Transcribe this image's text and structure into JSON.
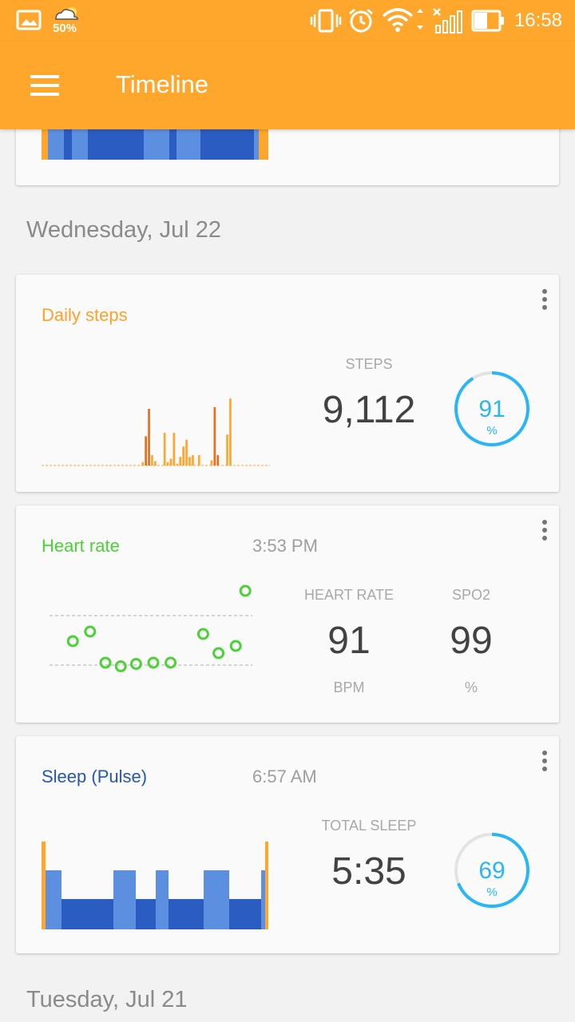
{
  "statusbar": {
    "battery_percent": "50%",
    "time": "16:58"
  },
  "appbar": {
    "title": "Timeline"
  },
  "date_headers": [
    "Wednesday, Jul 22",
    "Tuesday, Jul 21"
  ],
  "steps_card": {
    "title": "Daily steps",
    "title_color": "#ff9f2c",
    "metric_label": "STEPS",
    "metric_value": "9,112",
    "goal_percent": "91",
    "goal_unit": "%",
    "goal_fraction": 0.91
  },
  "heart_card": {
    "title": "Heart rate",
    "title_color": "#4cd137",
    "time": "3:53 PM",
    "hr_label": "HEART RATE",
    "hr_value": "91",
    "hr_unit": "BPM",
    "spo2_label": "SPO2",
    "spo2_value": "99",
    "spo2_unit": "%"
  },
  "sleep_card": {
    "title": "Sleep (Pulse)",
    "title_color": "#2456b8",
    "time": "6:57 AM",
    "metric_label": "TOTAL SLEEP",
    "metric_value": "5:35",
    "goal_percent": "69",
    "goal_unit": "%",
    "goal_fraction": 0.69
  },
  "chart_data": [
    {
      "type": "bar",
      "name_hint": "daily-steps",
      "values": [
        0,
        0,
        0,
        0,
        0,
        0,
        0,
        0,
        0,
        0,
        0,
        0,
        0,
        0,
        0,
        0,
        0,
        0,
        0,
        0,
        0,
        0,
        0,
        0,
        0,
        0,
        0,
        0,
        0,
        0,
        0,
        0,
        4,
        34,
        66,
        12,
        5,
        0,
        0,
        38,
        4,
        8,
        38,
        2,
        10,
        22,
        30,
        10,
        12,
        0,
        12,
        0,
        0,
        0,
        6,
        68,
        12,
        0,
        0,
        36,
        78,
        0,
        0,
        0,
        0,
        0,
        0,
        0,
        0,
        0,
        0,
        0,
        0
      ],
      "highlight": [
        33,
        34,
        55,
        56
      ]
    },
    {
      "type": "scatter",
      "name_hint": "heart-rate",
      "points": [
        [
          0.08,
          0.52
        ],
        [
          0.17,
          0.44
        ],
        [
          0.25,
          0.7
        ],
        [
          0.33,
          0.73
        ],
        [
          0.41,
          0.71
        ],
        [
          0.5,
          0.7
        ],
        [
          0.59,
          0.7
        ],
        [
          0.76,
          0.46
        ],
        [
          0.84,
          0.62
        ],
        [
          0.93,
          0.56
        ],
        [
          0.98,
          0.1
        ]
      ]
    },
    {
      "type": "bar",
      "name_hint": "sleep",
      "segments": [
        {
          "w": 5,
          "level": "awake"
        },
        {
          "w": 20,
          "level": "light"
        },
        {
          "w": 65,
          "level": "deep"
        },
        {
          "w": 28,
          "level": "light"
        },
        {
          "w": 25,
          "level": "deep"
        },
        {
          "w": 16,
          "level": "light"
        },
        {
          "w": 44,
          "level": "deep"
        },
        {
          "w": 32,
          "level": "light"
        },
        {
          "w": 40,
          "level": "deep"
        },
        {
          "w": 5,
          "level": "light"
        },
        {
          "w": 4,
          "level": "awake"
        }
      ]
    }
  ],
  "colors": {
    "accent": "#ffa62c",
    "steps_bar": "#ffa62c",
    "steps_highlight": "#f06a19",
    "light_sleep": "#5c8fe0",
    "deep_sleep": "#2a5cc2",
    "awake": "#ffa62c",
    "ring": "#29b6f6",
    "heart_point": "#4cd137"
  }
}
